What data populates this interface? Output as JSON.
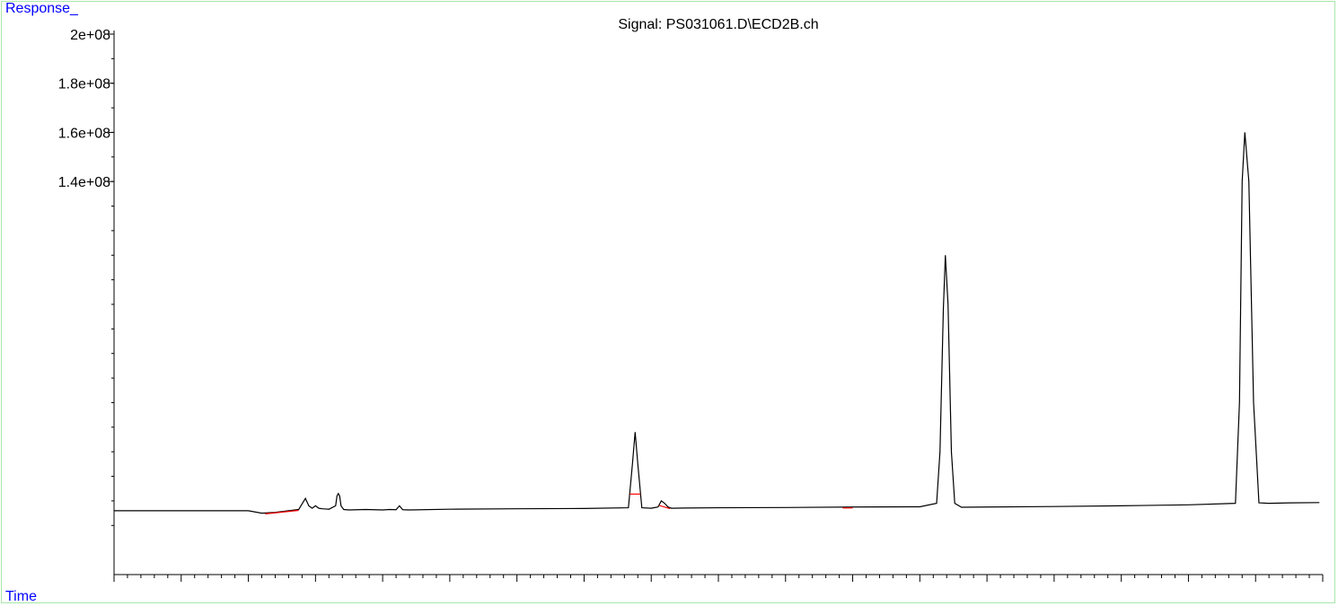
{
  "chart_data": {
    "type": "line",
    "title": "Signal: PS031061.D\\ECD2B.ch",
    "ylabel": "Response_",
    "xlabel": "Time",
    "y_ticks": [
      {
        "value": 200000000,
        "label": "2e+08"
      },
      {
        "value": 180000000,
        "label": "1.8e+08"
      },
      {
        "value": 160000000,
        "label": "1.6e+08"
      },
      {
        "value": 140000000,
        "label": "1.4e+08"
      }
    ],
    "ylim": [
      -20000000,
      200000000
    ],
    "xlim": [
      0,
      18
    ],
    "grid": false,
    "line_color": "#000000",
    "baseline_marker_color": "#ff0000",
    "series": [
      {
        "x": [
          0.0,
          2.0,
          2.2,
          2.4,
          2.6,
          2.75,
          2.85,
          2.9,
          2.95,
          3.0,
          3.05,
          3.1,
          3.15,
          3.2,
          3.3,
          3.32,
          3.34,
          3.36,
          3.38,
          3.42,
          3.5,
          3.75,
          4.0,
          4.1,
          4.2,
          4.25,
          4.3,
          4.4,
          5.0,
          6.0,
          7.0,
          7.66,
          7.72,
          7.76,
          7.8,
          7.86,
          8.0,
          8.1,
          8.15,
          8.2,
          8.25,
          8.3,
          8.5,
          9.0,
          10.0,
          11.0,
          12.0,
          12.25,
          12.3,
          12.35,
          12.38,
          12.42,
          12.47,
          12.52,
          12.62,
          13.0,
          14.0,
          15.0,
          16.0,
          16.7,
          16.76,
          16.8,
          16.84,
          16.9,
          16.97,
          17.05,
          17.2,
          17.5,
          17.95
        ],
        "y": [
          6000000,
          6000000,
          5000000,
          5300000,
          6000000,
          6500000,
          11000000,
          8000000,
          7000000,
          8000000,
          7000000,
          6800000,
          6700000,
          6600000,
          8000000,
          12000000,
          13000000,
          12000000,
          8000000,
          6500000,
          6300000,
          6500000,
          6300000,
          6500000,
          6400000,
          8000000,
          6400000,
          6300000,
          6600000,
          6800000,
          6900000,
          7200000,
          25000000,
          38000000,
          25000000,
          7200000,
          7000000,
          7500000,
          10000000,
          9000000,
          7500000,
          7000000,
          7100000,
          7200000,
          7300000,
          7500000,
          7600000,
          9000000,
          30000000,
          88000000,
          110000000,
          90000000,
          30000000,
          9000000,
          7400000,
          7500000,
          7700000,
          8000000,
          8400000,
          9000000,
          50000000,
          140000000,
          160000000,
          140000000,
          50000000,
          9200000,
          9000000,
          9200000,
          9300000
        ]
      }
    ],
    "baseline_markers": [
      {
        "x": [
          2.25,
          2.75
        ]
      },
      {
        "x": [
          7.68,
          7.84
        ]
      },
      {
        "x": [
          8.12,
          8.28
        ]
      },
      {
        "x": [
          10.85,
          11.0
        ]
      }
    ]
  }
}
